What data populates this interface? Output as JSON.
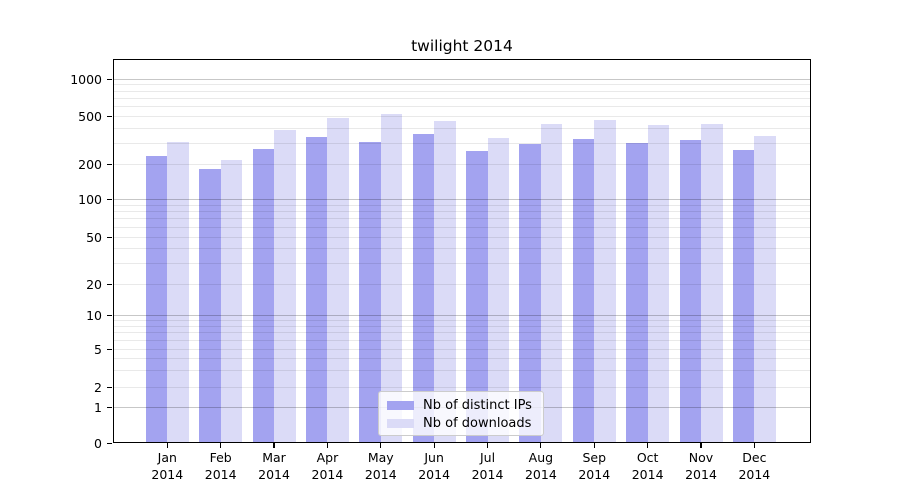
{
  "figure": {
    "background": "#ffffff",
    "text_color": "#000000"
  },
  "chart_data": {
    "type": "bar",
    "title": "twilight 2014",
    "categories": [
      "Jan 2014",
      "Feb 2014",
      "Mar 2014",
      "Apr 2014",
      "May 2014",
      "Jun 2014",
      "Jul 2014",
      "Aug 2014",
      "Sep 2014",
      "Oct 2014",
      "Nov 2014",
      "Dec 2014"
    ],
    "series": [
      {
        "name": "Nb of distinct IPs",
        "color": "#a3a3f0",
        "values": [
          237,
          183,
          268,
          339,
          310,
          356,
          261,
          297,
          328,
          302,
          321,
          262
        ]
      },
      {
        "name": "Nb of downloads",
        "color": "#dbdbf7",
        "values": [
          308,
          219,
          384,
          485,
          523,
          455,
          333,
          432,
          470,
          423,
          432,
          344
        ]
      }
    ],
    "xlabel": "",
    "ylabel": "",
    "yscale": "log-above-1-linear-near-0",
    "y_tick_values": [
      0,
      1,
      2,
      5,
      10,
      20,
      50,
      100,
      200,
      500,
      1000
    ],
    "ylim": [
      0,
      1450
    ],
    "grid": {
      "horizontal_major": true,
      "horizontal_minor": true,
      "drawn_over_bars": true
    },
    "legend_position": "lower center inside axes"
  }
}
